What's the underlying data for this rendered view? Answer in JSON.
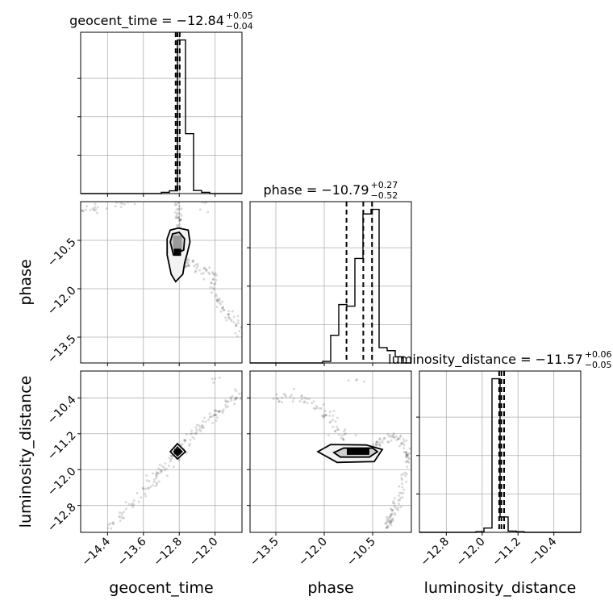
{
  "figure": {
    "params": [
      "geocent_time",
      "phase",
      "luminosity_distance"
    ],
    "titles": [
      {
        "param": "geocent_time",
        "prefix": "geocent_time = ",
        "median": "−12.84",
        "upper": "+0.05",
        "lower": "−0.04"
      },
      {
        "param": "phase",
        "prefix": "phase = ",
        "median": "−10.79",
        "upper": "+0.27",
        "lower": "−0.52"
      },
      {
        "param": "luminosity_distance",
        "prefix": "luminosity_distance = ",
        "median": "−11.57",
        "upper": "+0.06",
        "lower": "−0.05"
      }
    ],
    "colors": {
      "line": "#000000",
      "grid": "#b0b0b0",
      "scatter": "#000000"
    }
  },
  "chart_data": {
    "type": "corner",
    "grid": true,
    "axes": {
      "geocent_time": {
        "label": "geocent_time",
        "range": [
          -15.0,
          -11.4
        ],
        "ticks": [
          -14.4,
          -13.6,
          -12.8,
          -12.0
        ],
        "tick_labels": [
          "−14.4",
          "−13.6",
          "−12.8",
          "−12.0"
        ]
      },
      "phase": {
        "label": "phase",
        "range": [
          -14.3,
          -9.3
        ],
        "ticks": [
          -13.5,
          -12.0,
          -10.5
        ],
        "tick_labels": [
          "−13.5",
          "−12.0",
          "−10.5"
        ]
      },
      "luminosity_distance": {
        "label": "luminosity_distance",
        "range": [
          -13.4,
          -9.8
        ],
        "ticks": [
          -12.8,
          -12.0,
          -11.2,
          -10.4
        ],
        "tick_labels": [
          "−12.8",
          "−12.0",
          "−11.2",
          "−10.4"
        ]
      }
    },
    "histograms": {
      "geocent_time": {
        "edges": [
          -15.0,
          -14.82,
          -14.64,
          -14.46,
          -14.28,
          -14.1,
          -13.92,
          -13.74,
          -13.56,
          -13.38,
          -13.2,
          -13.02,
          -12.84,
          -12.66,
          -12.48,
          -12.3,
          -12.12,
          -11.94,
          -11.76,
          -11.58,
          -11.4
        ],
        "counts": [
          0,
          0,
          0,
          0,
          0,
          0,
          0,
          0,
          0,
          0,
          0.008,
          0.018,
          1.0,
          0.39,
          0.02,
          0.008,
          0,
          0,
          0,
          0
        ],
        "quantiles": [
          -12.88,
          -12.84,
          -12.79
        ]
      },
      "phase": {
        "edges": [
          -14.3,
          -14.05,
          -13.8,
          -13.55,
          -13.3,
          -13.05,
          -12.8,
          -12.55,
          -12.3,
          -12.05,
          -11.8,
          -11.55,
          -11.3,
          -11.05,
          -10.8,
          -10.55,
          -10.3,
          -10.05,
          -9.8,
          -9.55,
          -9.3
        ],
        "counts": [
          0,
          0,
          0,
          0,
          0,
          0,
          0,
          0,
          0,
          0.01,
          0.18,
          0.38,
          0.37,
          0.68,
          0.97,
          1.0,
          0.1,
          0.08,
          0.04,
          0.0
        ],
        "quantiles": [
          -11.31,
          -10.79,
          -10.52
        ]
      },
      "luminosity_distance": {
        "edges": [
          -13.4,
          -13.22,
          -13.04,
          -12.86,
          -12.68,
          -12.5,
          -12.32,
          -12.14,
          -11.96,
          -11.78,
          -11.6,
          -11.42,
          -11.24,
          -11.06,
          -10.88,
          -10.7,
          -10.52,
          -10.34,
          -10.16,
          -9.98,
          -9.8
        ],
        "counts": [
          0,
          0,
          0,
          0,
          0,
          0,
          0,
          0.004,
          0.028,
          1.0,
          0.1,
          0.008,
          0.004,
          0,
          0,
          0,
          0,
          0,
          0,
          0
        ],
        "quantiles": [
          -11.62,
          -11.57,
          -11.51
        ]
      }
    },
    "scatter_2d": [
      {
        "x": "geocent_time",
        "y": "phase",
        "paths": [
          {
            "points": [
              [
                -14.95,
                -9.6
              ],
              [
                -14.3,
                -9.45
              ],
              [
                -13.7,
                -9.2
              ],
              [
                -13.2,
                -9.0
              ],
              [
                -12.95,
                -9.05
              ],
              [
                -12.85,
                -9.35
              ],
              [
                -12.8,
                -9.8
              ]
            ],
            "n": 90,
            "spread": [
              0.05,
              0.07
            ]
          },
          {
            "points": [
              [
                -12.8,
                -9.8
              ],
              [
                -12.78,
                -10.4
              ],
              [
                -12.82,
                -10.9
              ],
              [
                -12.84,
                -11.3
              ]
            ],
            "n": 60,
            "spread": [
              0.03,
              0.06
            ]
          },
          {
            "points": [
              [
                -12.75,
                -11.2
              ],
              [
                -12.55,
                -11.2
              ],
              [
                -12.1,
                -11.5
              ],
              [
                -11.9,
                -12.4
              ],
              [
                -11.6,
                -13.0
              ],
              [
                -11.4,
                -13.3
              ]
            ],
            "n": 110,
            "spread": [
              0.06,
              0.12
            ]
          },
          {
            "points": [
              [
                -12.35,
                -9.5
              ],
              [
                -12.2,
                -9.3
              ]
            ],
            "n": 6,
            "spread": [
              0.05,
              0.1
            ]
          }
        ],
        "contours": [
          {
            "level": 0.95,
            "points": [
              [
                -12.88,
                -11.78
              ],
              [
                -12.98,
                -11.55
              ],
              [
                -13.07,
                -10.95
              ],
              [
                -13.07,
                -10.45
              ],
              [
                -13.0,
                -10.18
              ],
              [
                -12.82,
                -10.12
              ],
              [
                -12.6,
                -10.18
              ],
              [
                -12.56,
                -10.55
              ],
              [
                -12.62,
                -10.9
              ],
              [
                -12.68,
                -11.2
              ],
              [
                -12.72,
                -11.55
              ],
              [
                -12.88,
                -11.78
              ]
            ]
          },
          {
            "level": 0.68,
            "points": [
              [
                -12.93,
                -10.95
              ],
              [
                -13.0,
                -10.55
              ],
              [
                -12.95,
                -10.3
              ],
              [
                -12.8,
                -10.25
              ],
              [
                -12.68,
                -10.45
              ],
              [
                -12.7,
                -10.8
              ],
              [
                -12.93,
                -10.95
              ]
            ]
          }
        ],
        "cores": [
          {
            "center": [
              -12.84,
              -10.6
            ],
            "size": [
              0.2,
              0.5
            ],
            "shade": "#9a9a9a"
          },
          {
            "center": [
              -12.84,
              -10.87
            ],
            "size": [
              0.16,
              0.22
            ],
            "shade": "#000000"
          }
        ]
      },
      {
        "x": "geocent_time",
        "y": "luminosity_distance",
        "paths": [
          {
            "points": [
              [
                -14.4,
                -13.3
              ],
              [
                -13.6,
                -12.5
              ],
              [
                -13.0,
                -11.8
              ],
              [
                -12.6,
                -11.3
              ],
              [
                -12.2,
                -10.9
              ],
              [
                -11.8,
                -10.6
              ],
              [
                -11.4,
                -10.3
              ]
            ],
            "n": 170,
            "spread": [
              0.06,
              0.07
            ]
          },
          {
            "points": [
              [
                -12.84,
                -11.55
              ],
              [
                -12.82,
                -11.75
              ]
            ],
            "n": 20,
            "spread": [
              0.03,
              0.04
            ]
          },
          {
            "points": [
              [
                -12.1,
                -10.0
              ],
              [
                -11.9,
                -9.95
              ]
            ],
            "n": 4,
            "spread": [
              0.05,
              0.05
            ]
          }
        ],
        "contours": [
          {
            "level": 0.95,
            "points": [
              [
                -13.0,
                -11.6
              ],
              [
                -12.84,
                -11.42
              ],
              [
                -12.66,
                -11.6
              ],
              [
                -12.84,
                -11.76
              ],
              [
                -13.0,
                -11.6
              ]
            ]
          },
          {
            "level": 0.68,
            "points": [
              [
                -12.92,
                -11.6
              ],
              [
                -12.84,
                -11.5
              ],
              [
                -12.74,
                -11.6
              ],
              [
                -12.84,
                -11.69
              ],
              [
                -12.92,
                -11.6
              ]
            ]
          }
        ],
        "cores": [
          {
            "center": [
              -12.84,
              -11.6
            ],
            "size": [
              0.14,
              0.12
            ],
            "shade": "#000000"
          }
        ]
      },
      {
        "x": "phase",
        "y": "luminosity_distance",
        "paths": [
          {
            "points": [
              [
                -13.6,
                -10.35
              ],
              [
                -12.8,
                -10.4
              ],
              [
                -12.0,
                -10.7
              ],
              [
                -11.6,
                -11.0
              ],
              [
                -11.4,
                -11.3
              ]
            ],
            "n": 70,
            "spread": [
              0.14,
              0.07
            ]
          },
          {
            "points": [
              [
                -10.5,
                -11.5
              ],
              [
                -10.0,
                -11.3
              ],
              [
                -9.6,
                -11.3
              ],
              [
                -9.4,
                -11.7
              ],
              [
                -9.6,
                -12.5
              ],
              [
                -9.9,
                -13.0
              ],
              [
                -10.0,
                -13.3
              ]
            ],
            "n": 140,
            "spread": [
              0.07,
              0.06
            ]
          },
          {
            "points": [
              [
                -11.0,
                -9.95
              ],
              [
                -10.7,
                -10.0
              ]
            ],
            "n": 4,
            "spread": [
              0.1,
              0.05
            ]
          }
        ],
        "contours": [
          {
            "level": 0.95,
            "points": [
              [
                -12.2,
                -11.6
              ],
              [
                -11.8,
                -11.44
              ],
              [
                -10.7,
                -11.45
              ],
              [
                -10.2,
                -11.55
              ],
              [
                -10.45,
                -11.82
              ],
              [
                -11.6,
                -11.84
              ],
              [
                -12.2,
                -11.6
              ]
            ]
          },
          {
            "level": 0.68,
            "points": [
              [
                -11.7,
                -11.62
              ],
              [
                -11.4,
                -11.52
              ],
              [
                -10.5,
                -11.52
              ],
              [
                -10.35,
                -11.6
              ],
              [
                -10.6,
                -11.72
              ],
              [
                -11.5,
                -11.72
              ],
              [
                -11.7,
                -11.62
              ]
            ]
          }
        ],
        "cores": [
          {
            "center": [
              -10.95,
              -11.6
            ],
            "size": [
              0.7,
              0.14
            ],
            "shade": "#000000"
          }
        ]
      }
    ]
  }
}
